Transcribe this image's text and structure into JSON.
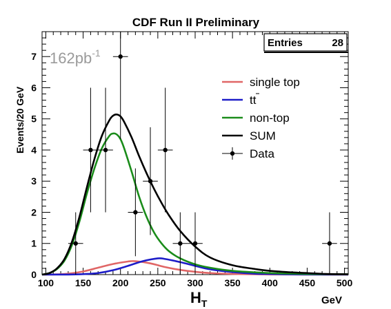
{
  "chart_data": {
    "type": "line",
    "title": "CDF Run II Preliminary",
    "xlabel": "H",
    "xlabel_sub": "T",
    "xunit": "GeV",
    "ylabel": "Events/20 GeV",
    "xlim": [
      95,
      505
    ],
    "ylim": [
      0,
      7.8
    ],
    "xticks": [
      100,
      150,
      200,
      250,
      300,
      350,
      400,
      450,
      500
    ],
    "yticks": [
      0,
      1,
      2,
      3,
      4,
      5,
      6,
      7
    ],
    "annotation": {
      "base": "162pb",
      "sup": "-1"
    },
    "stats_box": {
      "label": "Entries",
      "value": "28"
    },
    "series": [
      {
        "name": "single top",
        "color": "#e06666",
        "x": [
          95,
          110,
          130,
          150,
          170,
          190,
          210,
          220,
          240,
          260,
          280,
          300,
          320,
          350,
          400,
          450,
          505
        ],
        "y": [
          0,
          0.005,
          0.03,
          0.1,
          0.22,
          0.34,
          0.42,
          0.43,
          0.36,
          0.24,
          0.15,
          0.09,
          0.05,
          0.02,
          0.005,
          0.002,
          0
        ]
      },
      {
        "name": "tt",
        "color": "#1c1cc8",
        "x": [
          95,
          130,
          150,
          170,
          190,
          210,
          230,
          250,
          260,
          280,
          300,
          320,
          350,
          380,
          420,
          470,
          505
        ],
        "y": [
          0,
          0.002,
          0.015,
          0.05,
          0.14,
          0.28,
          0.43,
          0.52,
          0.5,
          0.4,
          0.28,
          0.17,
          0.08,
          0.03,
          0.01,
          0.002,
          0
        ]
      },
      {
        "name": "non-top",
        "color": "#1a8c1a",
        "x": [
          95,
          105,
          115,
          125,
          135,
          145,
          155,
          165,
          175,
          185,
          190,
          195,
          200,
          205,
          215,
          225,
          235,
          245,
          255,
          265,
          280,
          300,
          320,
          350,
          400,
          450,
          505
        ],
        "y": [
          0,
          0.05,
          0.18,
          0.45,
          0.95,
          1.7,
          2.6,
          3.4,
          4.05,
          4.45,
          4.53,
          4.5,
          4.35,
          4.05,
          3.3,
          2.5,
          1.85,
          1.35,
          1.0,
          0.75,
          0.52,
          0.33,
          0.22,
          0.12,
          0.05,
          0.02,
          0.01
        ]
      },
      {
        "name": "SUM",
        "color": "#000000",
        "x": [
          95,
          105,
          115,
          125,
          135,
          145,
          155,
          165,
          175,
          185,
          190,
          195,
          200,
          205,
          215,
          225,
          235,
          245,
          255,
          265,
          280,
          300,
          320,
          350,
          380,
          400,
          430,
          450,
          475,
          505
        ],
        "y": [
          0,
          0.05,
          0.2,
          0.5,
          1.05,
          1.85,
          2.8,
          3.7,
          4.45,
          4.95,
          5.1,
          5.14,
          5.08,
          4.9,
          4.4,
          3.8,
          3.25,
          2.75,
          2.3,
          1.9,
          1.4,
          0.9,
          0.55,
          0.3,
          0.18,
          0.12,
          0.07,
          0.05,
          0.02,
          0.01
        ]
      }
    ],
    "data": {
      "name": "Data",
      "points": [
        {
          "x": 140,
          "y": 1,
          "err": 1.0
        },
        {
          "x": 160,
          "y": 4,
          "err": 2.0
        },
        {
          "x": 180,
          "y": 4,
          "err": 2.0
        },
        {
          "x": 200,
          "y": 7,
          "err": 2.65
        },
        {
          "x": 220,
          "y": 2,
          "err": 1.41
        },
        {
          "x": 240,
          "y": 3,
          "err": 1.73
        },
        {
          "x": 260,
          "y": 4,
          "err": 2.0
        },
        {
          "x": 280,
          "y": 1,
          "err": 1.0
        },
        {
          "x": 300,
          "y": 1,
          "err": 1.0
        },
        {
          "x": 480,
          "y": 1,
          "err": 1.0
        }
      ],
      "xerr": 10
    },
    "legend": {
      "position": "center-right",
      "entries": [
        {
          "label": "single top",
          "color": "#e06666",
          "kind": "line"
        },
        {
          "label": "tt",
          "overbar_sub": true,
          "color": "#1c1cc8",
          "kind": "line"
        },
        {
          "label": "non-top",
          "color": "#1a8c1a",
          "kind": "line"
        },
        {
          "label": "SUM",
          "color": "#000000",
          "kind": "line"
        },
        {
          "label": "Data",
          "color": "#000000",
          "kind": "marker"
        }
      ]
    }
  }
}
